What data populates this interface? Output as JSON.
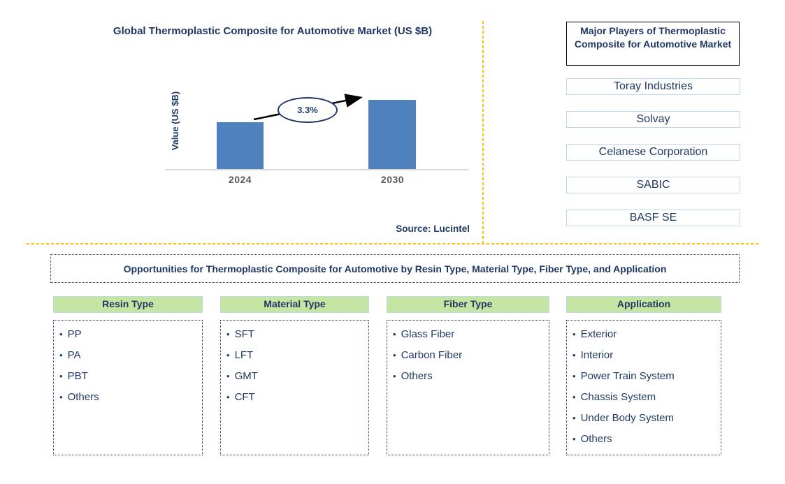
{
  "colors": {
    "navy": "#1F3864",
    "bar_blue": "#4E81BD",
    "divider_orange": "#FFC000",
    "header_green": "#C5E5A2",
    "box_border_blue": "#BDD7EE",
    "axis_gray": "#D9D9D9",
    "tick_gray": "#595959"
  },
  "chart_section": {
    "title": "Global Thermoplastic Composite for Automotive Market (US $B)",
    "y_axis_label": "Value (US $B)",
    "growth_label": "3.3%",
    "source": "Source: Lucintel",
    "chart_data": {
      "type": "bar",
      "title": "Global Thermoplastic Composite for Automotive Market (US $B)",
      "categories": [
        "2024",
        "2030"
      ],
      "values_relative": [
        0.68,
        1.0
      ],
      "values_note": "no numeric axis shown; bar heights estimated relative to 2030 bar",
      "ylabel": "Value (US $B)",
      "xlabel": "",
      "annotation": {
        "label": "3.3%",
        "type": "growth-arrow"
      },
      "bar_color": "#4E81BD",
      "grid": false,
      "legend": false
    }
  },
  "major_players": {
    "title": "Major Players of Thermoplastic Composite for Automotive Market",
    "companies": [
      "Toray Industries",
      "Solvay",
      "Celanese Corporation",
      "SABIC",
      "BASF SE"
    ]
  },
  "opportunities": {
    "banner": "Opportunities for Thermoplastic Composite for Automotive by Resin Type, Material Type, Fiber Type, and Application",
    "columns": [
      {
        "header": "Resin Type",
        "items": [
          "PP",
          "PA",
          "PBT",
          "Others"
        ]
      },
      {
        "header": "Material Type",
        "items": [
          "SFT",
          "LFT",
          "GMT",
          "CFT"
        ]
      },
      {
        "header": "Fiber Type",
        "items": [
          "Glass Fiber",
          "Carbon Fiber",
          "Others"
        ]
      },
      {
        "header": "Application",
        "items": [
          "Exterior",
          "Interior",
          "Power Train System",
          "Chassis System",
          "Under Body System",
          "Others"
        ]
      }
    ]
  }
}
